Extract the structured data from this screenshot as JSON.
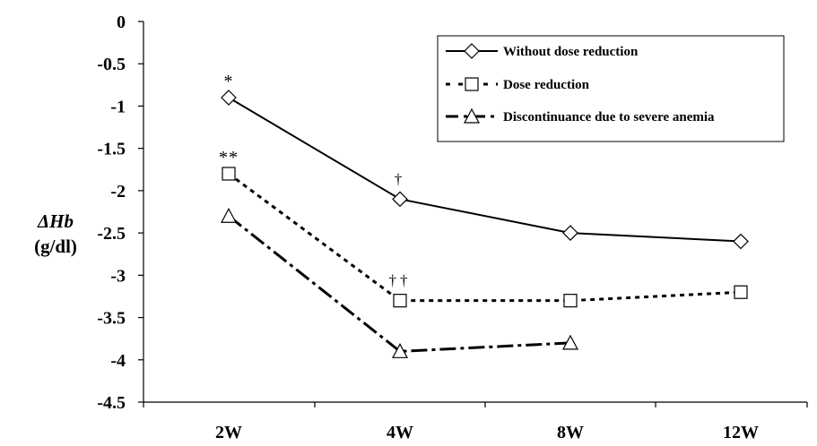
{
  "chart_data": {
    "type": "line",
    "ylabel_line1": "ΔHb",
    "ylabel_line2": "(g/dl)",
    "categories": [
      "2W",
      "4W",
      "8W",
      "12W"
    ],
    "ylim": [
      -4.5,
      0
    ],
    "yticks": [
      "0",
      "-0.5",
      "-1",
      "-1.5",
      "-2",
      "-2.5",
      "-3",
      "-3.5",
      "-4",
      "-4.5"
    ],
    "legend_position": "top-right",
    "series": [
      {
        "name": "Without dose reduction",
        "marker": "diamond",
        "line_style": "solid",
        "values": [
          -0.9,
          -2.1,
          -2.5,
          -2.6
        ],
        "annotations": [
          "*",
          "†",
          "",
          ""
        ]
      },
      {
        "name": "Dose reduction",
        "marker": "square",
        "line_style": "dashed",
        "values": [
          -1.8,
          -3.3,
          -3.3,
          -3.2
        ],
        "annotations": [
          "**",
          "††",
          "",
          ""
        ]
      },
      {
        "name": "Discontinuance due to severe anemia",
        "marker": "triangle",
        "line_style": "dash-dot",
        "values": [
          -2.3,
          -3.9,
          -3.8,
          null
        ],
        "annotations": [
          "",
          "",
          "",
          ""
        ]
      }
    ]
  }
}
